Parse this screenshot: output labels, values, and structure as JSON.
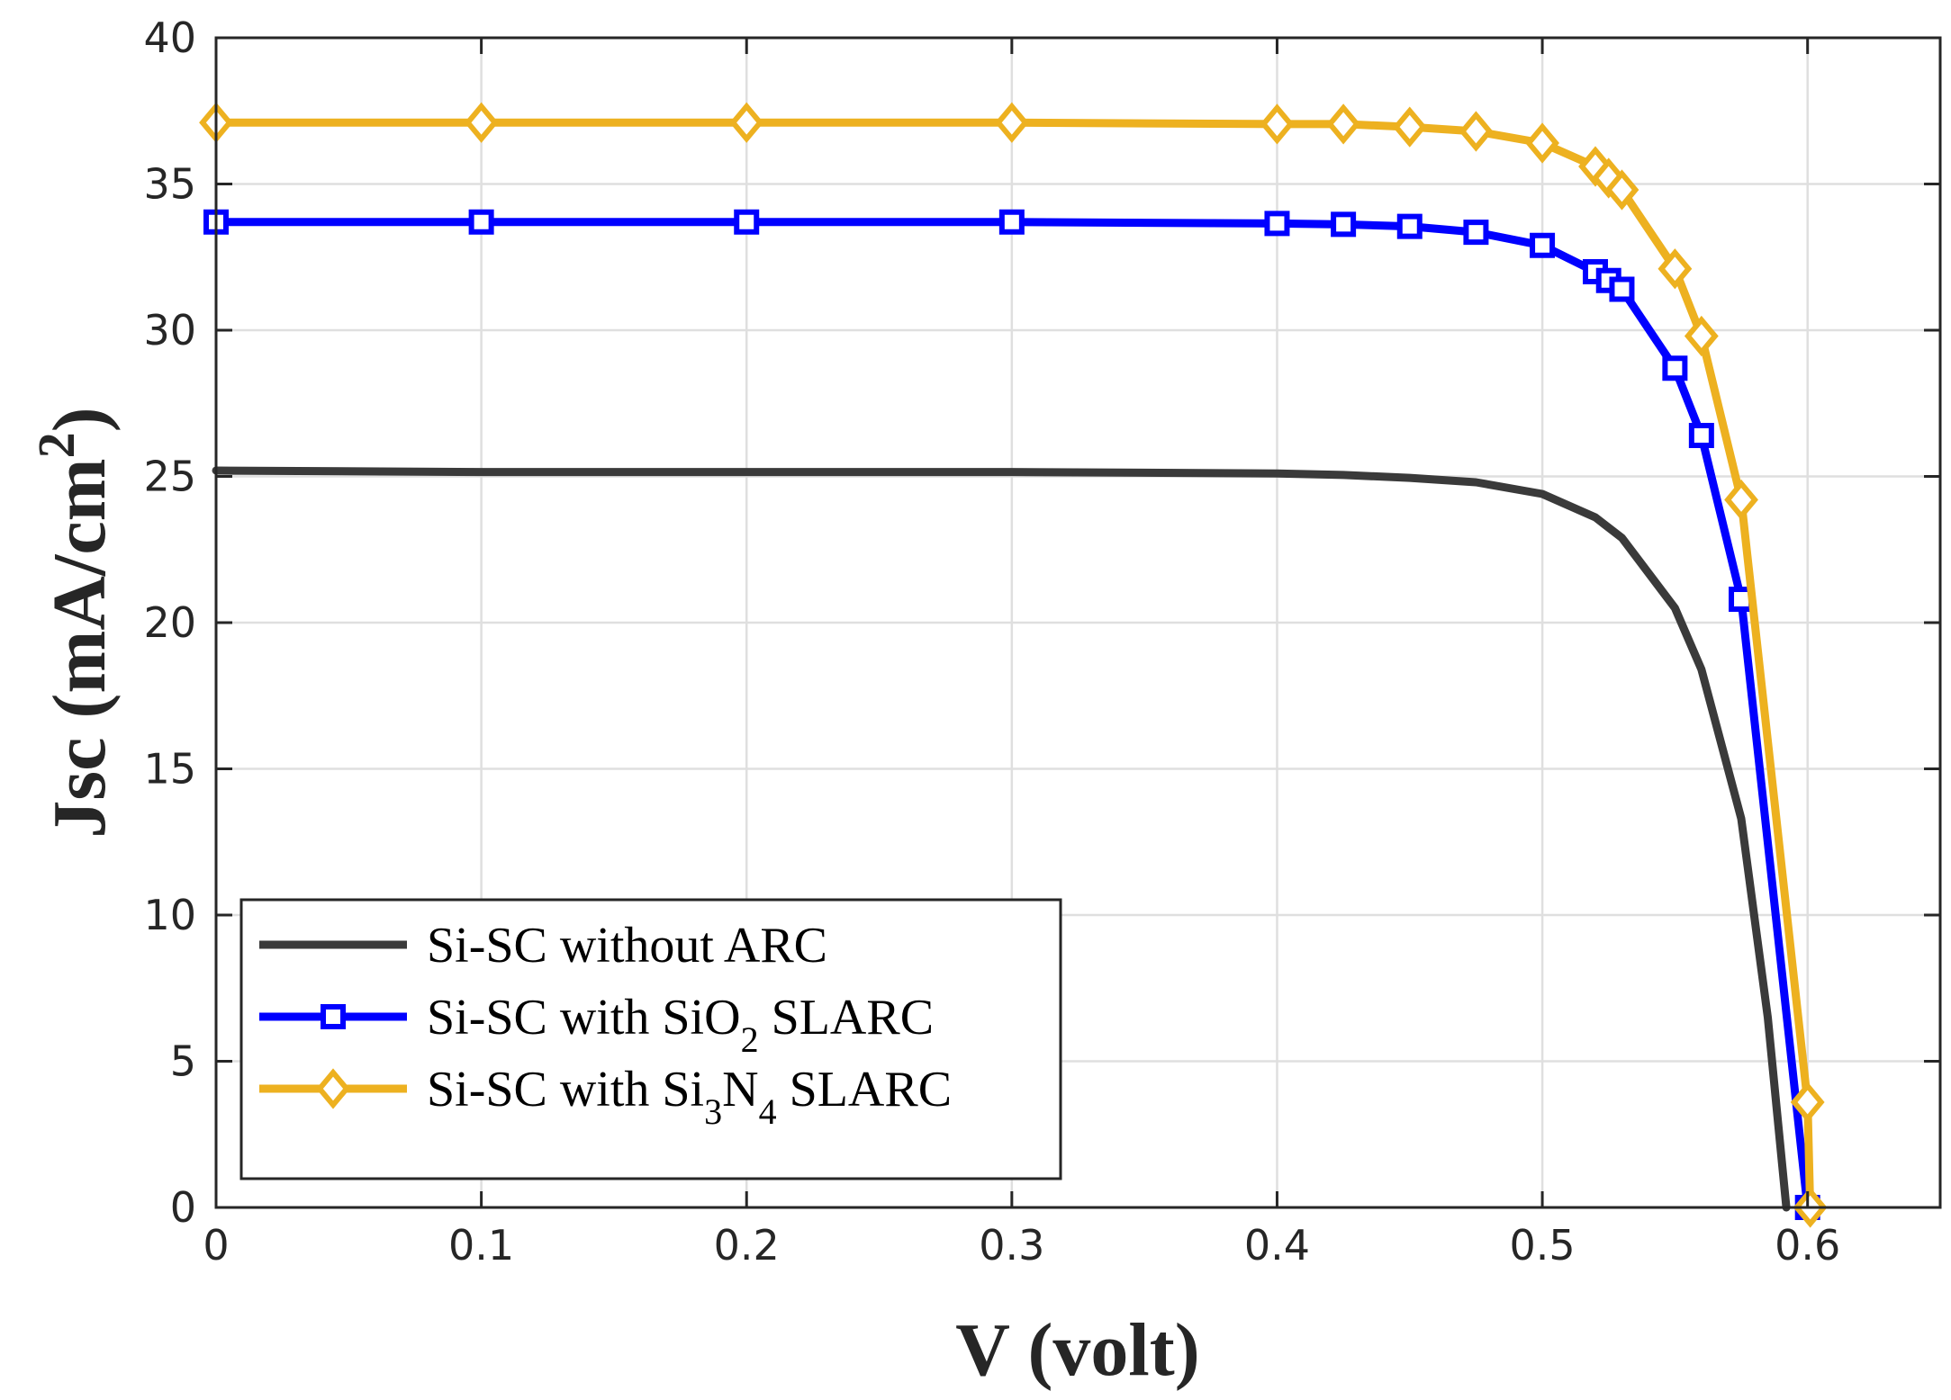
{
  "chart_data": {
    "type": "line",
    "title": "",
    "xlabel": "V (volt)",
    "ylabel": {
      "main": "Jsc (mA/cm",
      "sup": "2",
      "close": ")"
    },
    "xlim": [
      0,
      0.65
    ],
    "ylim": [
      0,
      40
    ],
    "grid": true,
    "legend_position": "bottom-left",
    "x_ticks": [
      0,
      0.1,
      0.2,
      0.3,
      0.4,
      0.5,
      0.6
    ],
    "x_tick_labels": [
      "0",
      "0.1",
      "0.2",
      "0.3",
      "0.4",
      "0.5",
      "0.6"
    ],
    "y_ticks": [
      0,
      5,
      10,
      15,
      20,
      25,
      30,
      35,
      40
    ],
    "y_tick_labels": [
      "0",
      "5",
      "10",
      "15",
      "20",
      "25",
      "30",
      "35",
      "40"
    ],
    "series": [
      {
        "name": "Si-SC without ARC",
        "legend": {
          "pre": "Si-SC without ARC",
          "sub1": "",
          "mid": "",
          "sub2": "",
          "post": ""
        },
        "color": "#3a3a3a",
        "marker": "none",
        "x": [
          0,
          0.1,
          0.2,
          0.3,
          0.4,
          0.425,
          0.45,
          0.475,
          0.5,
          0.52,
          0.53,
          0.55,
          0.56,
          0.575,
          0.585,
          0.592
        ],
        "y": [
          25.2,
          25.15,
          25.15,
          25.15,
          25.1,
          25.05,
          24.95,
          24.8,
          24.4,
          23.6,
          22.9,
          20.5,
          18.4,
          13.3,
          6.5,
          0
        ]
      },
      {
        "name": "Si-SC with SiO2 SLARC",
        "legend": {
          "pre": "Si-SC with SiO",
          "sub1": "2",
          "mid": " SLARC",
          "sub2": "",
          "post": ""
        },
        "color": "#0000ff",
        "marker": "square",
        "x": [
          0,
          0.1,
          0.2,
          0.3,
          0.4,
          0.425,
          0.45,
          0.475,
          0.5,
          0.52,
          0.525,
          0.53,
          0.55,
          0.56,
          0.575,
          0.6
        ],
        "y": [
          33.7,
          33.7,
          33.7,
          33.7,
          33.65,
          33.62,
          33.55,
          33.35,
          32.9,
          32.0,
          31.7,
          31.4,
          28.7,
          26.4,
          20.8,
          0
        ]
      },
      {
        "name": "Si-SC with Si3N4 SLARC",
        "legend": {
          "pre": "Si-SC with Si",
          "sub1": "3",
          "mid": "N",
          "sub2": "4",
          "post": " SLARC"
        },
        "color": "#edb120",
        "marker": "diamond",
        "x": [
          0,
          0.1,
          0.2,
          0.3,
          0.4,
          0.425,
          0.45,
          0.475,
          0.5,
          0.52,
          0.525,
          0.53,
          0.55,
          0.56,
          0.575,
          0.6,
          0.601
        ],
        "y": [
          37.1,
          37.1,
          37.1,
          37.1,
          37.05,
          37.05,
          36.95,
          36.8,
          36.4,
          35.6,
          35.2,
          34.8,
          32.1,
          29.8,
          24.2,
          3.6,
          0
        ]
      }
    ]
  }
}
